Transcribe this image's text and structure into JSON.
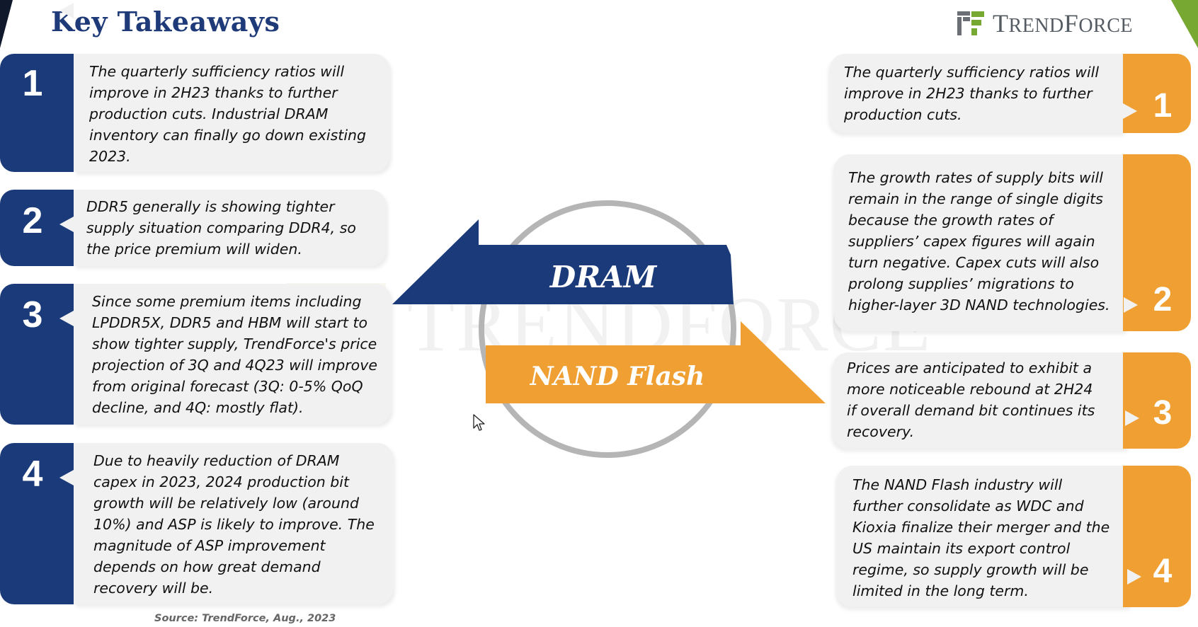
{
  "header": {
    "title": "Key Takeaways",
    "logo_text_big": "T",
    "logo_text_1": "REND",
    "logo_text_big2": "F",
    "logo_text_2": "ORCE"
  },
  "watermark": {
    "text": "TRENDFORCE"
  },
  "dram": {
    "label": "DRAM",
    "color": "#1b3a7a",
    "items": [
      {
        "number": "1",
        "lines": [
          "The quarterly sufficiency ratios will",
          "improve in 2H23 thanks to further",
          "production cuts. Industrial DRAM",
          "inventory can finally go down existing",
          "2023."
        ]
      },
      {
        "number": "2",
        "lines": [
          "DDR5 generally is showing tighter",
          "supply situation comparing DDR4, so",
          "the price premium will widen."
        ]
      },
      {
        "number": "3",
        "lines": [
          "Since some premium items including",
          "LPDDR5X, DDR5 and HBM will start to",
          "show tighter supply, TrendForce's price",
          "projection of 3Q and 4Q23 will improve",
          "from original forecast (3Q: 0-5% QoQ",
          "decline, and 4Q: mostly flat)."
        ]
      },
      {
        "number": "4",
        "lines": [
          "Due to heavily reduction of DRAM",
          "capex in 2023, 2024 production bit",
          "growth will be relatively low (around",
          "10%) and ASP is likely to improve. The",
          "magnitude of ASP improvement",
          "depends on how great demand",
          "recovery will be."
        ]
      }
    ]
  },
  "nand": {
    "label": "NAND Flash",
    "color": "#f0a033",
    "items": [
      {
        "number": "1",
        "lines": [
          "The quarterly sufficiency ratios will",
          "improve in 2H23 thanks to further",
          "production cuts."
        ]
      },
      {
        "number": "2",
        "lines": [
          "The growth rates of supply bits will",
          "remain in the range of single digits",
          "because the growth rates of",
          "suppliers’ capex figures will again",
          "turn negative. Capex cuts will also",
          "prolong supplies’ migrations to",
          "higher-layer 3D NAND technologies."
        ]
      },
      {
        "number": "3",
        "lines": [
          "Prices are anticipated to exhibit a",
          "more noticeable rebound at 2H24",
          "if overall demand bit continues its",
          "recovery."
        ]
      },
      {
        "number": "4",
        "lines": [
          "The NAND Flash industry will",
          "further consolidate as WDC and",
          "Kioxia finalize their merger and the",
          "US maintain its export control",
          "regime, so supply growth will be",
          "limited in the long term."
        ]
      }
    ]
  },
  "footer": {
    "source": "Source: TrendForce, Aug., 2023"
  }
}
